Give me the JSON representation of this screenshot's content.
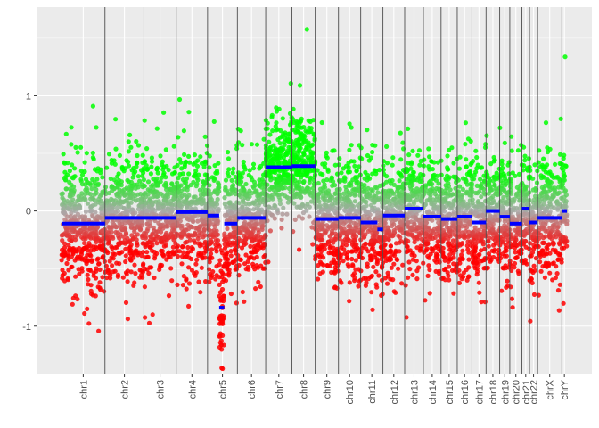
{
  "chart_data": {
    "type": "scatter",
    "title": "",
    "xlabel": "",
    "ylabel": "",
    "ylim": [
      -1.42,
      1.77
    ],
    "y_ticks": [
      -1,
      0,
      1
    ],
    "y_tick_labels": [
      "-1",
      "0",
      "1"
    ],
    "grid": true,
    "legend": "none",
    "chromosomes": [
      {
        "name": "chr1",
        "start": 0.0,
        "end": 0.086,
        "median": -0.11
      },
      {
        "name": "chr2",
        "start": 0.086,
        "end": 0.163,
        "median": -0.06
      },
      {
        "name": "chr3",
        "start": 0.163,
        "end": 0.227,
        "median": -0.06
      },
      {
        "name": "chr4",
        "start": 0.227,
        "end": 0.289,
        "median": -0.01
      },
      {
        "name": "chr5",
        "start": 0.289,
        "end": 0.348,
        "median": -0.04
      },
      {
        "name": "chr6",
        "start": 0.348,
        "end": 0.404,
        "median": -0.06
      },
      {
        "name": "chr7",
        "start": 0.404,
        "end": 0.456,
        "median": 0.38
      },
      {
        "name": "chr8",
        "start": 0.456,
        "end": 0.502,
        "median": 0.39
      },
      {
        "name": "chr9",
        "start": 0.502,
        "end": 0.548,
        "median": -0.07
      },
      {
        "name": "chr10",
        "start": 0.548,
        "end": 0.592,
        "median": -0.06
      },
      {
        "name": "chr11",
        "start": 0.592,
        "end": 0.636,
        "median": -0.1
      },
      {
        "name": "chr12",
        "start": 0.636,
        "end": 0.679,
        "median": -0.04
      },
      {
        "name": "chr13",
        "start": 0.679,
        "end": 0.716,
        "median": 0.02
      },
      {
        "name": "chr14",
        "start": 0.716,
        "end": 0.751,
        "median": -0.05
      },
      {
        "name": "chr15",
        "start": 0.751,
        "end": 0.783,
        "median": -0.07
      },
      {
        "name": "chr16",
        "start": 0.783,
        "end": 0.812,
        "median": -0.05
      },
      {
        "name": "chr17",
        "start": 0.812,
        "end": 0.84,
        "median": -0.1
      },
      {
        "name": "chr18",
        "start": 0.84,
        "end": 0.867,
        "median": 0.0
      },
      {
        "name": "chr19",
        "start": 0.867,
        "end": 0.887,
        "median": -0.05
      },
      {
        "name": "chr20",
        "start": 0.887,
        "end": 0.911,
        "median": -0.11
      },
      {
        "name": "chr21",
        "start": 0.911,
        "end": 0.926,
        "median": 0.02
      },
      {
        "name": "chr22",
        "start": 0.926,
        "end": 0.942,
        "median": -0.1
      },
      {
        "name": "chrX",
        "start": 0.942,
        "end": 0.99,
        "median": -0.06
      },
      {
        "name": "chrY",
        "start": 0.99,
        "end": 1.0,
        "median": 0.0
      }
    ],
    "segments": [
      {
        "start": 0.0,
        "end": 0.086,
        "value": -0.11
      },
      {
        "start": 0.086,
        "end": 0.163,
        "value": -0.06
      },
      {
        "start": 0.163,
        "end": 0.227,
        "value": -0.06
      },
      {
        "start": 0.227,
        "end": 0.289,
        "value": -0.01
      },
      {
        "start": 0.289,
        "end": 0.312,
        "value": -0.04
      },
      {
        "start": 0.312,
        "end": 0.322,
        "value": -0.84
      },
      {
        "start": 0.322,
        "end": 0.348,
        "value": -0.11
      },
      {
        "start": 0.348,
        "end": 0.404,
        "value": -0.06
      },
      {
        "start": 0.404,
        "end": 0.456,
        "value": 0.38
      },
      {
        "start": 0.456,
        "end": 0.502,
        "value": 0.39
      },
      {
        "start": 0.502,
        "end": 0.548,
        "value": -0.07
      },
      {
        "start": 0.548,
        "end": 0.592,
        "value": -0.06
      },
      {
        "start": 0.592,
        "end": 0.625,
        "value": -0.1
      },
      {
        "start": 0.625,
        "end": 0.636,
        "value": -0.16
      },
      {
        "start": 0.636,
        "end": 0.679,
        "value": -0.04
      },
      {
        "start": 0.679,
        "end": 0.716,
        "value": 0.02
      },
      {
        "start": 0.716,
        "end": 0.751,
        "value": -0.05
      },
      {
        "start": 0.751,
        "end": 0.783,
        "value": -0.07
      },
      {
        "start": 0.783,
        "end": 0.812,
        "value": -0.05
      },
      {
        "start": 0.812,
        "end": 0.84,
        "value": -0.1
      },
      {
        "start": 0.84,
        "end": 0.867,
        "value": 0.0
      },
      {
        "start": 0.867,
        "end": 0.887,
        "value": -0.05
      },
      {
        "start": 0.887,
        "end": 0.911,
        "value": -0.11
      },
      {
        "start": 0.911,
        "end": 0.926,
        "value": 0.02
      },
      {
        "start": 0.926,
        "end": 0.942,
        "value": -0.1
      },
      {
        "start": 0.942,
        "end": 0.99,
        "value": -0.06
      },
      {
        "start": 0.99,
        "end": 1.0,
        "value": 0.0
      }
    ],
    "colors": {
      "panel": "#ebebeb",
      "grid": "#ffffff",
      "gain": "#00ff00",
      "neutral": "#a9a9a9",
      "loss": "#ff0000",
      "segment": "#0000ff",
      "separator": "#4d4d4d"
    }
  }
}
